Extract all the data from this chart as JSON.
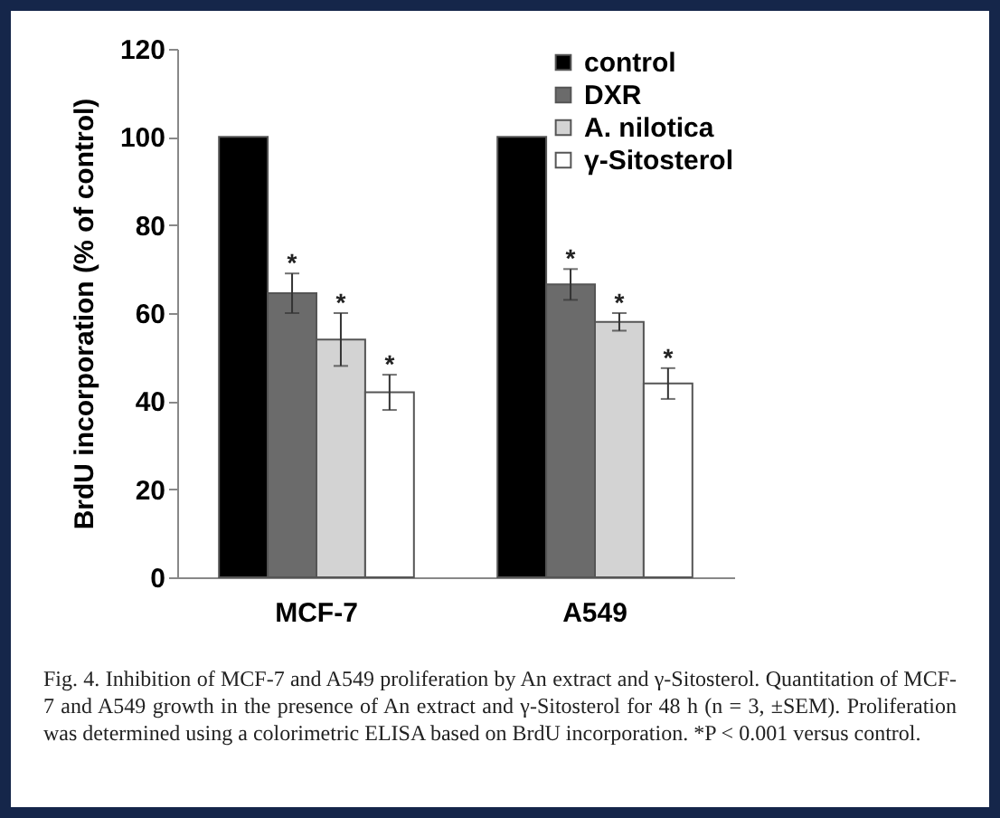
{
  "chart_data": {
    "type": "bar",
    "ylabel": "BrdU incorporation (% of control)",
    "categories": [
      "MCF-7",
      "A549"
    ],
    "series": [
      {
        "name": "control",
        "color": "#000000",
        "values": [
          100,
          100
        ]
      },
      {
        "name": "DXR",
        "color": "#6b6b6b",
        "values": [
          64.5,
          66.5
        ],
        "errors": [
          4.5,
          3.5
        ],
        "value_labels": [
          "*",
          "*"
        ]
      },
      {
        "name": "A. nilotica",
        "color": "#d3d3d3",
        "values": [
          54,
          58
        ],
        "errors": [
          6,
          2
        ],
        "value_labels": [
          "*",
          "*"
        ]
      },
      {
        "name": "γ-Sitosterol",
        "color": "#ffffff",
        "values": [
          42,
          44
        ],
        "errors": [
          4,
          3.5
        ],
        "value_labels": [
          "*",
          "*"
        ]
      }
    ],
    "ylim": [
      0,
      120
    ],
    "yticks": [
      0,
      20,
      40,
      60,
      80,
      100,
      120
    ],
    "grid": false,
    "legend": "top right",
    "annotations": [
      "Fig. 4. Inhibition of MCF-7 and A549 proliferation by An extract and γ-Sitosterol. Quantitation of MCF-7 and A549 growth in the presence of An extract and γ-Sitosterol for 48 h (n = 3, ±SEM). Proliferation was determined using a colorimetric ELISA based on BrdU incorporation. *P < 0.001 versus control."
    ]
  }
}
